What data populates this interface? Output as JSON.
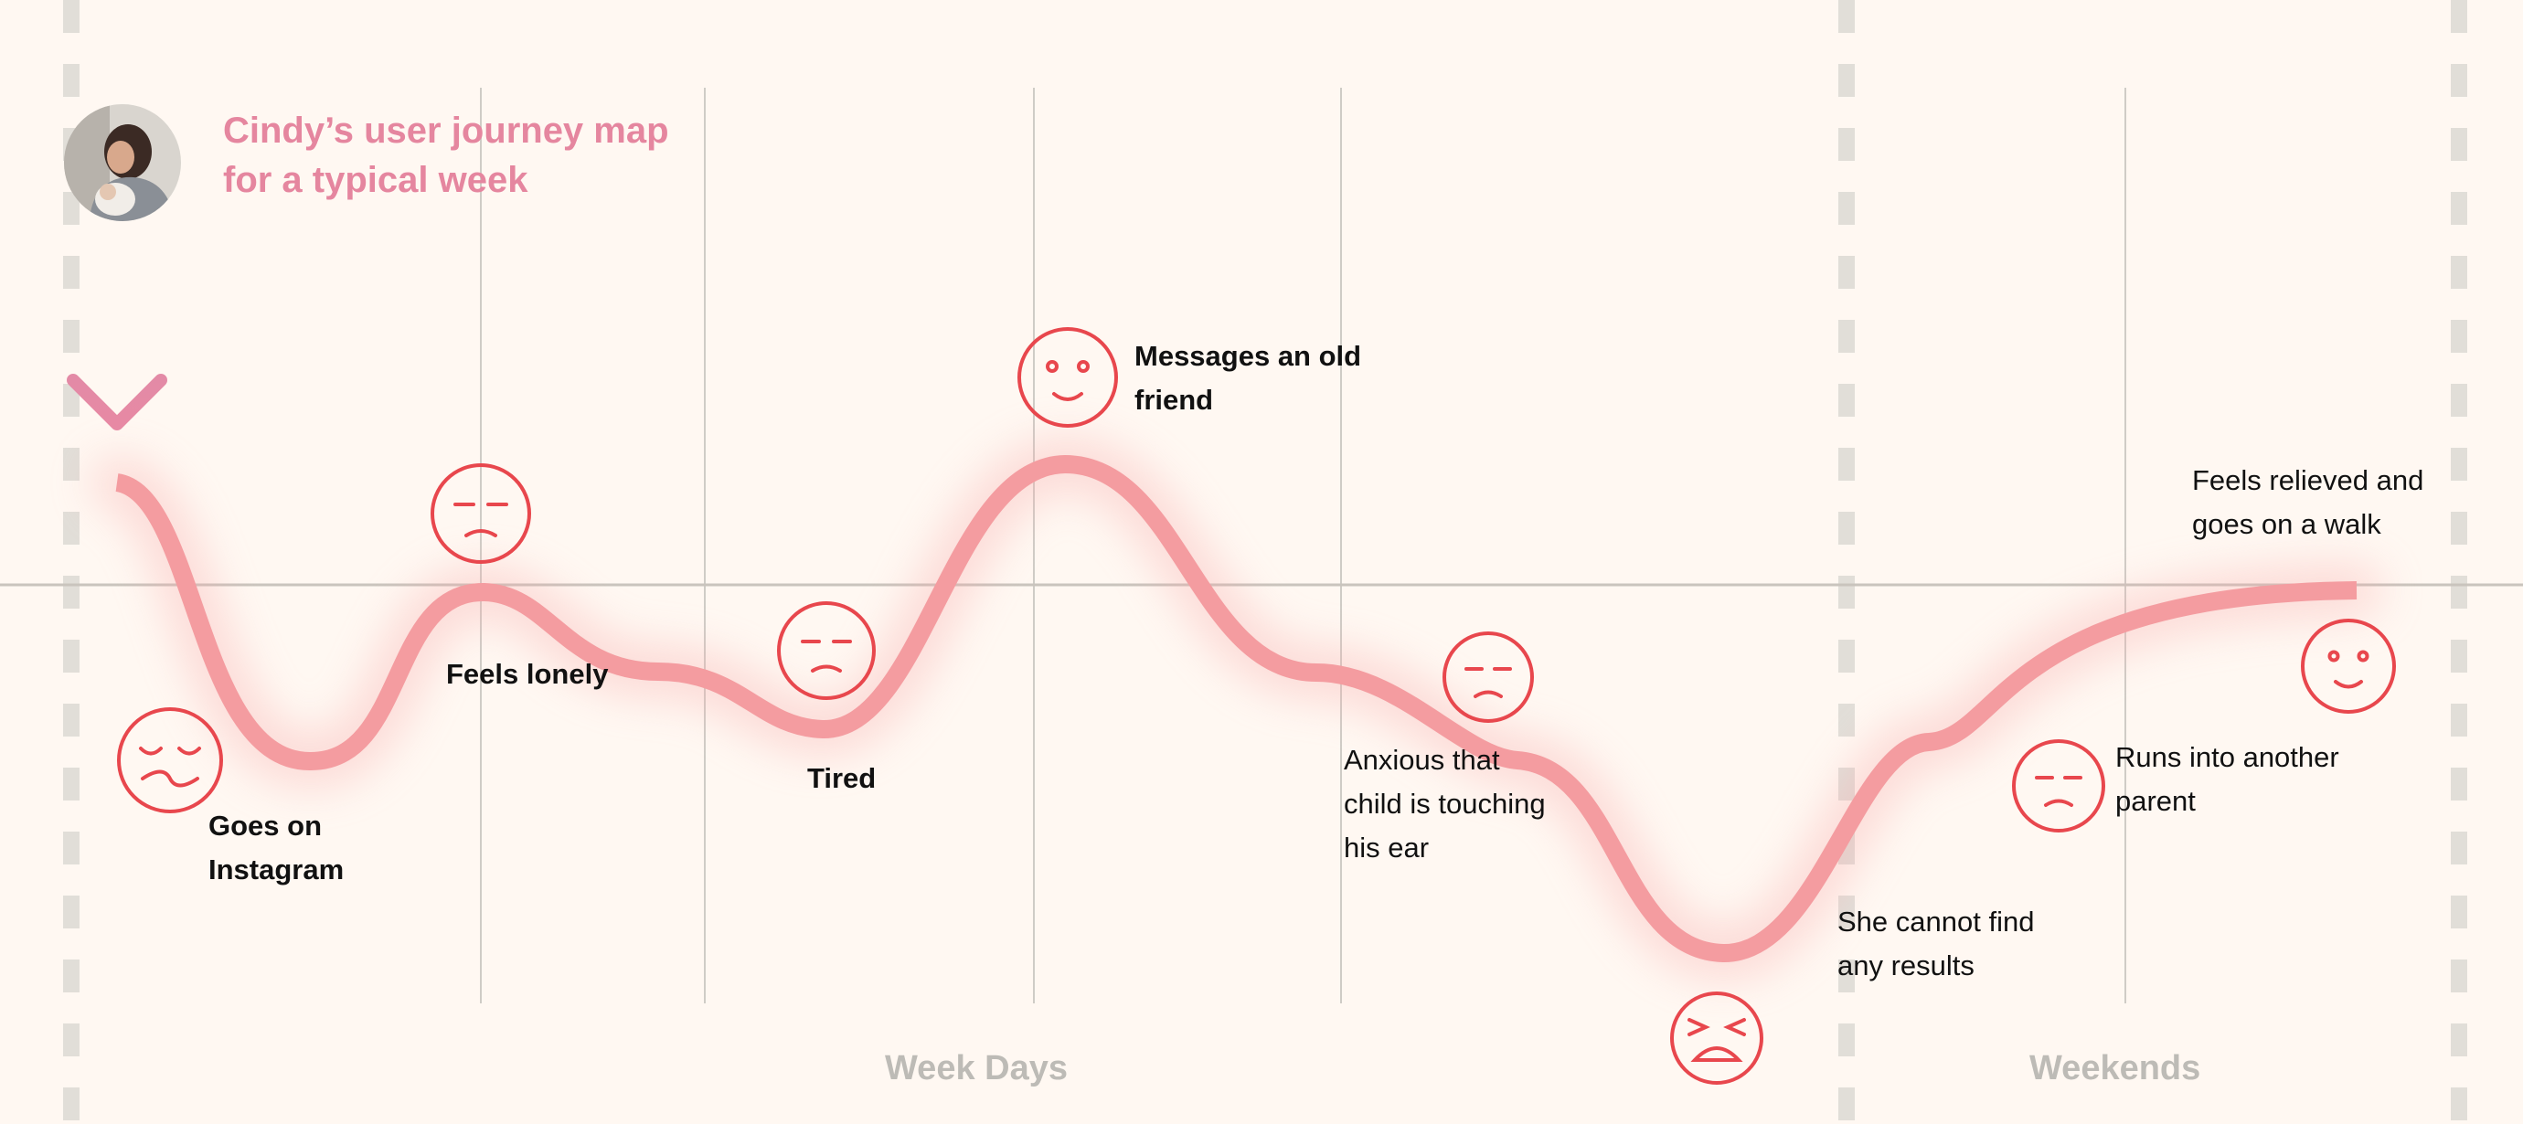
{
  "title": "Cindy’s user journey map\nfor a typical week",
  "sections": {
    "weekdays": "Week Days",
    "weekends": "Weekends"
  },
  "colors": {
    "background": "#fff8f2",
    "curve": "#f49ca0",
    "face": "#e8474d",
    "title": "#e5869f",
    "arrow": "#e38aa6",
    "grid": "#cfccc6",
    "dashes": "#e1ded8"
  },
  "events": [
    {
      "text": "Goes on\nInstagram",
      "mood": "sad-closed-eyes",
      "bold": true
    },
    {
      "text": "Feels lonely",
      "mood": "frown",
      "bold": true
    },
    {
      "text": "Tired",
      "mood": "frown",
      "bold": true
    },
    {
      "text": "Messages an old\nfriend",
      "mood": "smile",
      "bold": true
    },
    {
      "text": "Anxious that\nchild is touching\nhis ear",
      "mood": "frown",
      "bold": false
    },
    {
      "text": "She cannot find\nany results",
      "mood": "angry",
      "bold": false
    },
    {
      "text": "Runs into another\nparent",
      "mood": "frown",
      "bold": false
    },
    {
      "text": "Feels relieved and\ngoes on a walk",
      "mood": "smile",
      "bold": false
    }
  ]
}
